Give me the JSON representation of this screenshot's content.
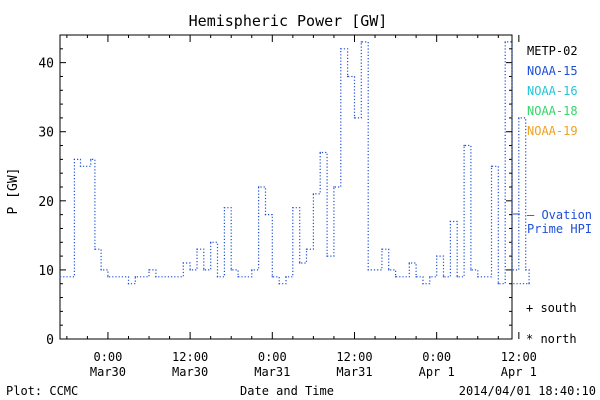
{
  "chart_data": {
    "type": "line",
    "title": "Hemispheric Power [GW]",
    "ylabel": "P [GW]",
    "xlabel": "Date and Time",
    "ylim": [
      0,
      44
    ],
    "yticks": [
      0,
      10,
      20,
      30,
      40
    ],
    "xlim_hours": [
      -7,
      59
    ],
    "xticks": [
      {
        "h": 0,
        "line1": "0:00",
        "line2": "Mar30"
      },
      {
        "h": 12,
        "line1": "12:00",
        "line2": "Mar30"
      },
      {
        "h": 24,
        "line1": "0:00",
        "line2": "Mar31"
      },
      {
        "h": 36,
        "line1": "12:00",
        "line2": "Mar31"
      },
      {
        "h": 48,
        "line1": "0:00",
        "line2": "Apr 1"
      },
      {
        "h": 60,
        "line1": "12:00",
        "line2": "Apr 1"
      }
    ],
    "legend": [
      {
        "name": "METP-02",
        "color": "#000000"
      },
      {
        "name": "NOAA-15",
        "color": "#1f4fd8"
      },
      {
        "name": "NOAA-16",
        "color": "#22c6d8"
      },
      {
        "name": "NOAA-18",
        "color": "#33d66a"
      },
      {
        "name": "NOAA-19",
        "color": "#f0a020"
      }
    ],
    "ovation": {
      "label_line1": "— Ovation",
      "label_line2": "Prime HPI",
      "value": 18,
      "color": "#1f4fd8"
    },
    "markers": {
      "south": "+ south",
      "north": "* north"
    },
    "series": [
      {
        "name": "NOAA-15",
        "color": "#1f4fd8",
        "points": [
          [
            -7,
            9
          ],
          [
            -4.9,
            26
          ],
          [
            -4,
            25
          ],
          [
            -2.5,
            26
          ],
          [
            -1.9,
            13
          ],
          [
            -1,
            10
          ],
          [
            0,
            9
          ],
          [
            3,
            8
          ],
          [
            4,
            9
          ],
          [
            6,
            10
          ],
          [
            7,
            9
          ],
          [
            11,
            11
          ],
          [
            12,
            10
          ],
          [
            13,
            13
          ],
          [
            14,
            10
          ],
          [
            15,
            14
          ],
          [
            16,
            9
          ],
          [
            17,
            19
          ],
          [
            18,
            10
          ],
          [
            19,
            9
          ],
          [
            21,
            10
          ],
          [
            22,
            22
          ],
          [
            23,
            18
          ],
          [
            24,
            9
          ],
          [
            25,
            8
          ],
          [
            26,
            9
          ],
          [
            27,
            19
          ],
          [
            28,
            11
          ],
          [
            29,
            13
          ],
          [
            30,
            21
          ],
          [
            31,
            27
          ],
          [
            32,
            12
          ],
          [
            33,
            22
          ],
          [
            34,
            42
          ],
          [
            35,
            38
          ],
          [
            36,
            32
          ],
          [
            37,
            43
          ],
          [
            38,
            10
          ],
          [
            40,
            13
          ],
          [
            41,
            10
          ],
          [
            42,
            9
          ],
          [
            44,
            11
          ],
          [
            45,
            9
          ],
          [
            46,
            8
          ],
          [
            47,
            9
          ],
          [
            48,
            12
          ],
          [
            49,
            9
          ],
          [
            50,
            17
          ],
          [
            51,
            9
          ],
          [
            52,
            28
          ],
          [
            53,
            10
          ],
          [
            54,
            9
          ],
          [
            56,
            25
          ],
          [
            57,
            8
          ],
          [
            58,
            43
          ],
          [
            59,
            10
          ],
          [
            60,
            32
          ],
          [
            61,
            10
          ],
          [
            61.5,
            8
          ]
        ]
      }
    ]
  },
  "footer": {
    "left": "Plot: CCMC",
    "right": "2014/04/01 18:40:10"
  }
}
